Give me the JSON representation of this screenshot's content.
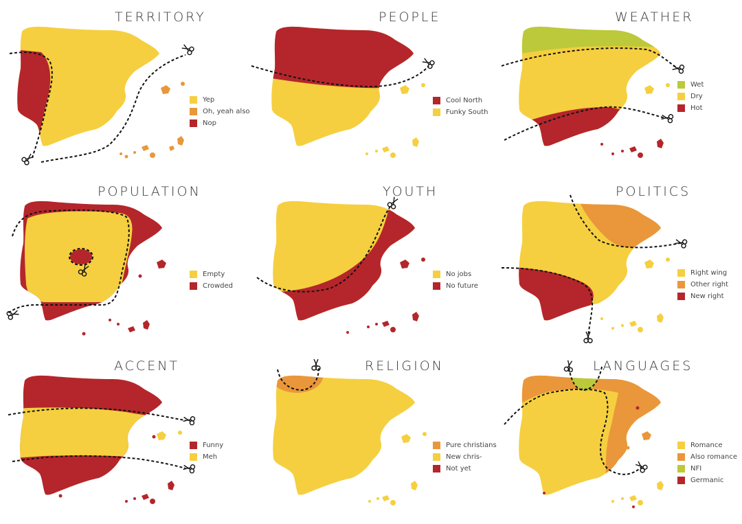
{
  "colors": {
    "yellow": "#f5cf3f",
    "orange": "#e9973a",
    "red": "#b4262b",
    "green": "#bcc93a",
    "cut_line": "#111111"
  },
  "panels": [
    {
      "title": "TERRITORY",
      "legend": [
        {
          "label": "Yep",
          "color": "#f5cf3f"
        },
        {
          "label": "Oh, yeah also",
          "color": "#e9973a"
        },
        {
          "label": "Nop",
          "color": "#b4262b"
        }
      ]
    },
    {
      "title": "PEOPLE",
      "legend": [
        {
          "label": "Cool North",
          "color": "#b4262b"
        },
        {
          "label": "Funky South",
          "color": "#f5cf3f"
        }
      ]
    },
    {
      "title": "WEATHER",
      "legend": [
        {
          "label": "Wet",
          "color": "#bcc93a"
        },
        {
          "label": "Dry",
          "color": "#f5cf3f"
        },
        {
          "label": "Hot",
          "color": "#b4262b"
        }
      ]
    },
    {
      "title": "POPULATION",
      "legend": [
        {
          "label": "Empty",
          "color": "#f5cf3f"
        },
        {
          "label": "Crowded",
          "color": "#b4262b"
        }
      ]
    },
    {
      "title": "YOUTH",
      "legend": [
        {
          "label": "No jobs",
          "color": "#f5cf3f"
        },
        {
          "label": "No future",
          "color": "#b4262b"
        }
      ]
    },
    {
      "title": "POLITICS",
      "legend": [
        {
          "label": "Right wing",
          "color": "#f5cf3f"
        },
        {
          "label": "Other right",
          "color": "#e9973a"
        },
        {
          "label": "New right",
          "color": "#b4262b"
        }
      ]
    },
    {
      "title": "ACCENT",
      "legend": [
        {
          "label": "Funny",
          "color": "#b4262b"
        },
        {
          "label": "Meh",
          "color": "#f5cf3f"
        }
      ]
    },
    {
      "title": "RELIGION",
      "legend": [
        {
          "label": "Pure christians",
          "color": "#e9973a"
        },
        {
          "label": "New chris-",
          "color": "#f5cf3f"
        },
        {
          "label": "Not yet",
          "color": "#b4262b"
        }
      ]
    },
    {
      "title": "LANGUAGES",
      "legend": [
        {
          "label": "Romance",
          "color": "#f5cf3f"
        },
        {
          "label": "Also romance",
          "color": "#e9973a"
        },
        {
          "label": "NFI",
          "color": "#bcc93a"
        },
        {
          "label": "Germanic",
          "color": "#b4262b"
        }
      ]
    }
  ]
}
